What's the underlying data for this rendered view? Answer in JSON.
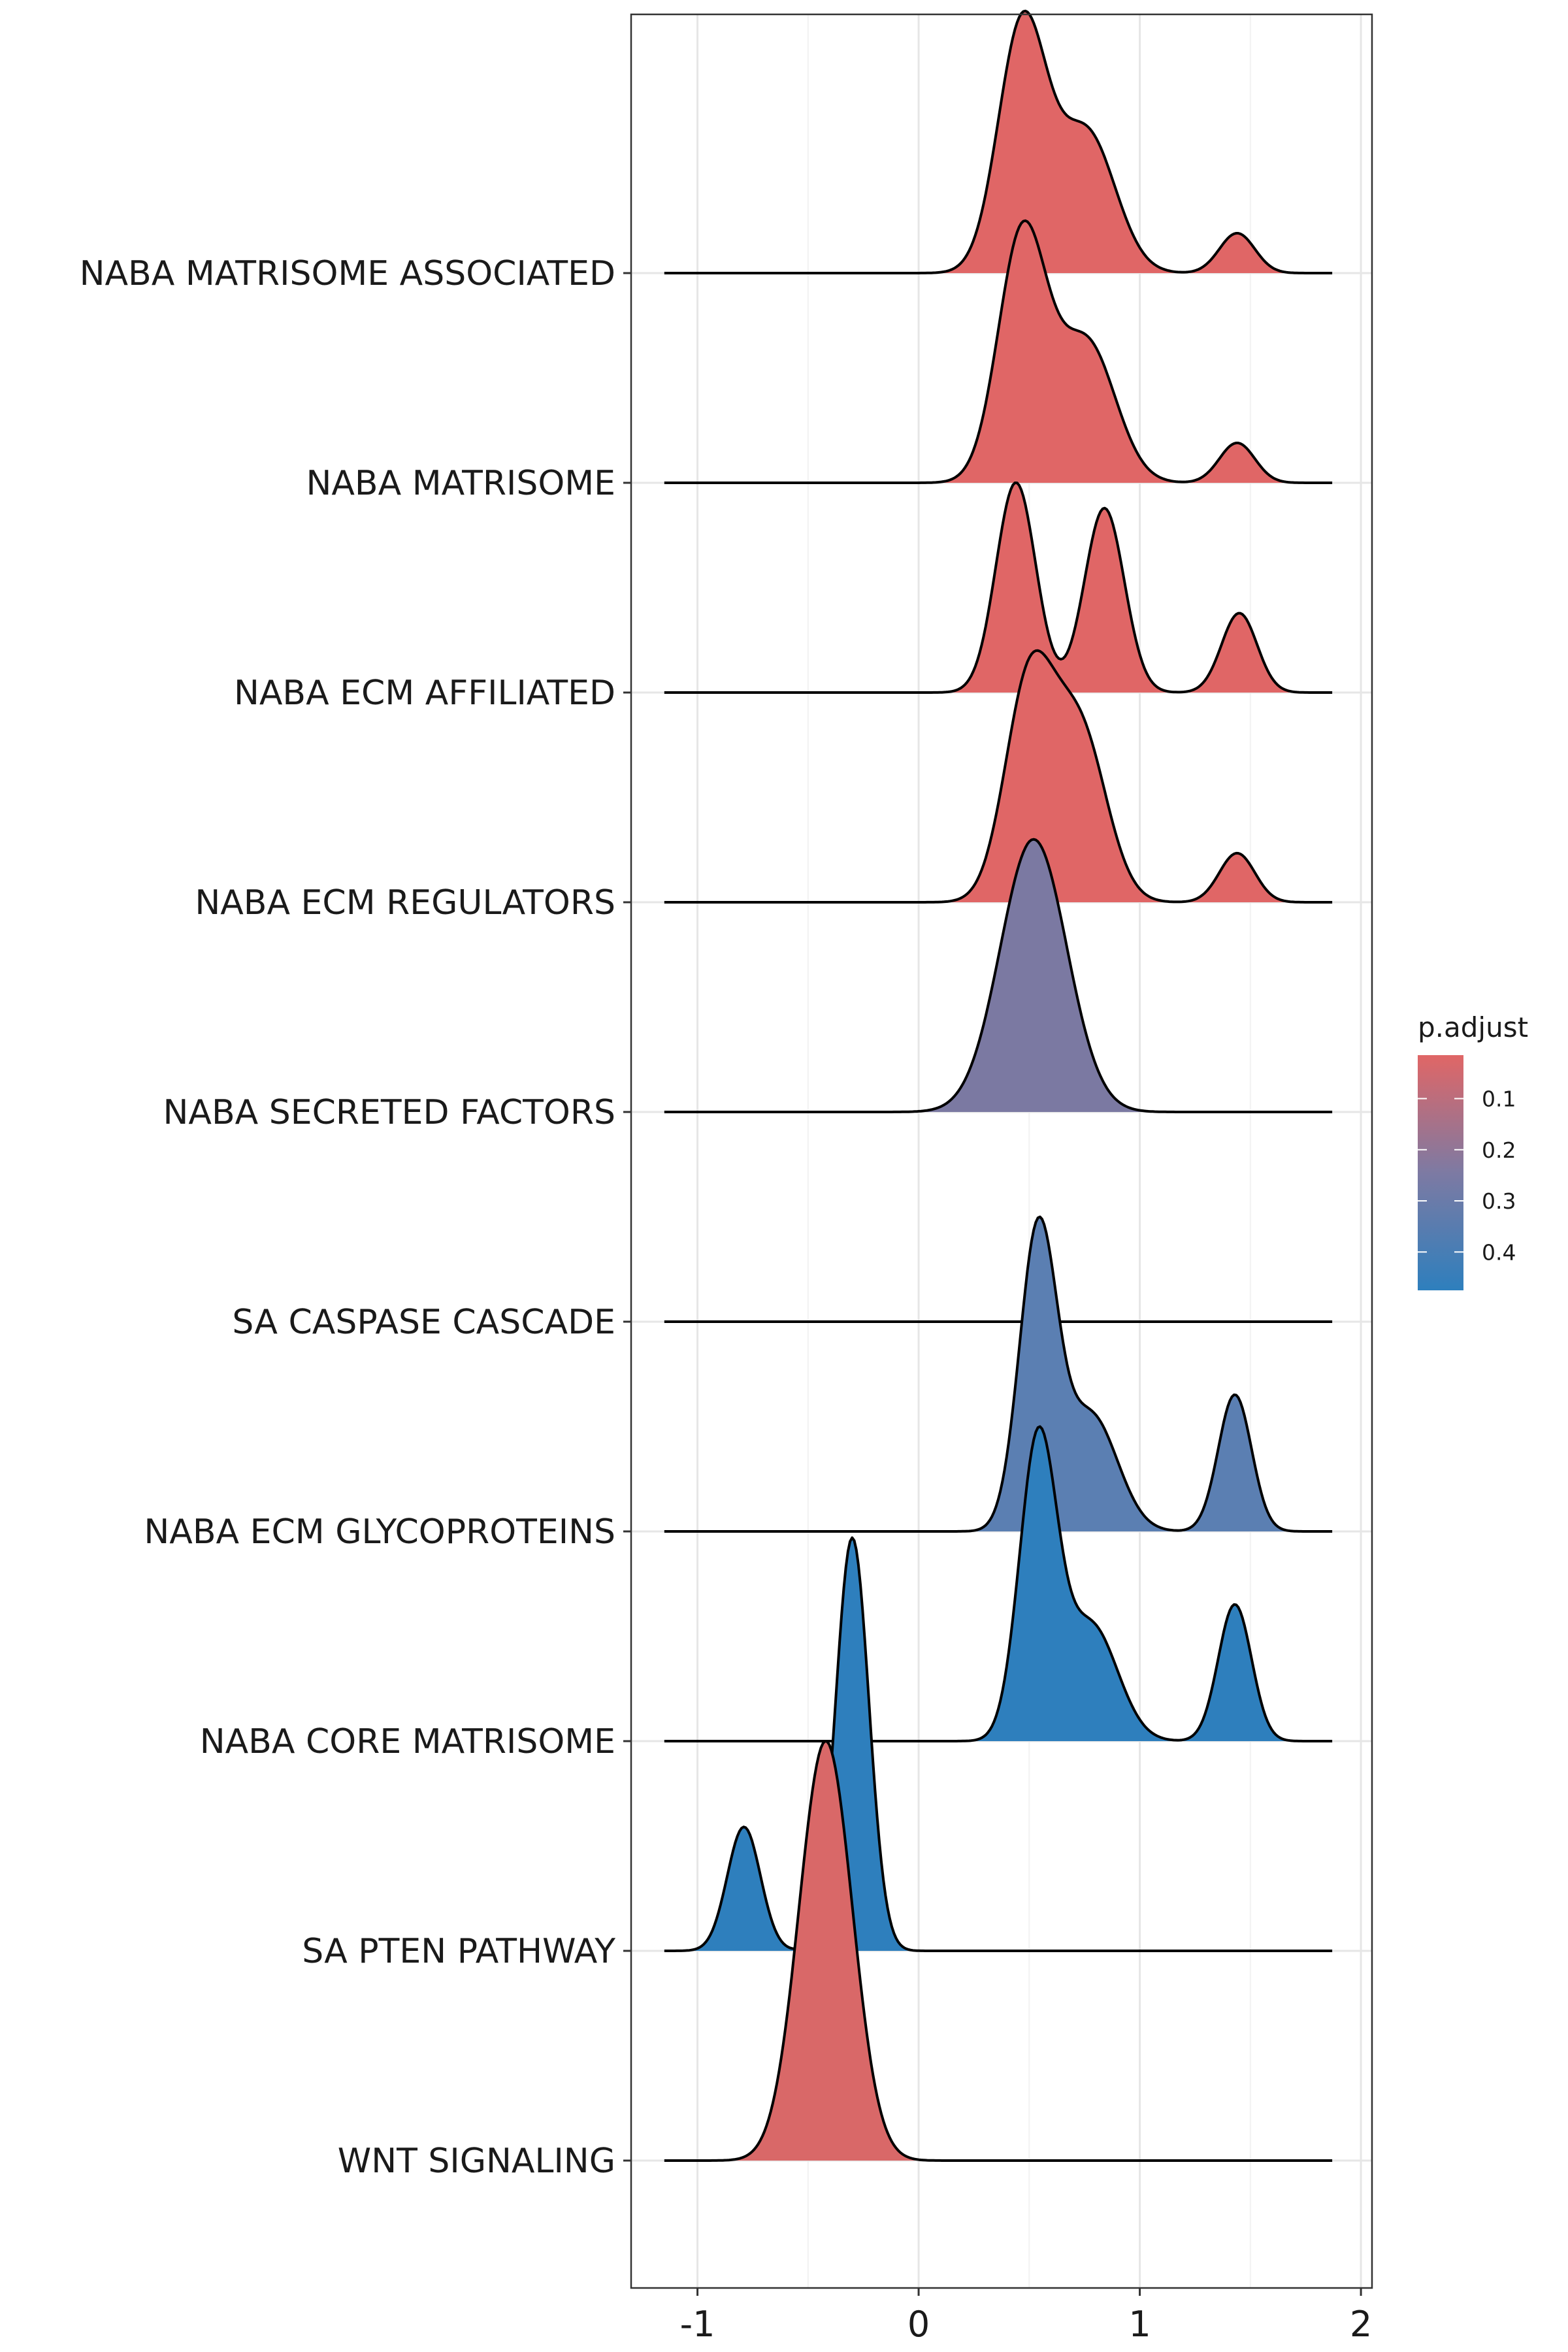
{
  "chart_data": {
    "type": "ridgeline",
    "x_ticks": [
      -1,
      0,
      1,
      2
    ],
    "xlim": [
      -1.3,
      2.05
    ],
    "grid": true,
    "legend": {
      "title": "p.adjust",
      "position": "right",
      "ticks": [
        "0.1",
        "0.2",
        "0.3",
        "0.4"
      ],
      "tick_values": [
        0.1,
        0.2,
        0.3,
        0.4
      ],
      "range": [
        0.015,
        0.475
      ],
      "low_color": "#e06666",
      "high_color": "#2e7fbd"
    },
    "x_range": [
      -1.15,
      1.87
    ],
    "series": [
      {
        "name": "NABA MATRISOME ASSOCIATED",
        "p_adjust": 0.02,
        "color": "#e06666",
        "height": 1.25,
        "peaks": [
          {
            "mu": 0.47,
            "sd": 0.11,
            "w": 0.75
          },
          {
            "mu": 0.76,
            "sd": 0.13,
            "w": 0.42
          },
          {
            "mu": 1.44,
            "sd": 0.08,
            "w": 0.12
          }
        ]
      },
      {
        "name": "NABA MATRISOME",
        "p_adjust": 0.02,
        "color": "#e06666",
        "height": 1.25,
        "peaks": [
          {
            "mu": 0.47,
            "sd": 0.11,
            "w": 0.75
          },
          {
            "mu": 0.76,
            "sd": 0.13,
            "w": 0.42
          },
          {
            "mu": 1.44,
            "sd": 0.08,
            "w": 0.12
          }
        ]
      },
      {
        "name": "NABA ECM AFFILIATED",
        "p_adjust": 0.02,
        "color": "#e06666",
        "height": 1.0,
        "peaks": [
          {
            "mu": 0.44,
            "sd": 0.09,
            "w": 0.74
          },
          {
            "mu": 0.84,
            "sd": 0.09,
            "w": 0.65
          },
          {
            "mu": 1.45,
            "sd": 0.08,
            "w": 0.28
          }
        ]
      },
      {
        "name": "NABA ECM REGULATORS",
        "p_adjust": 0.03,
        "color": "#e06666",
        "height": 1.2,
        "peaks": [
          {
            "mu": 0.5,
            "sd": 0.11,
            "w": 0.62
          },
          {
            "mu": 0.73,
            "sd": 0.12,
            "w": 0.48
          },
          {
            "mu": 1.44,
            "sd": 0.08,
            "w": 0.14
          }
        ]
      },
      {
        "name": "NABA SECRETED FACTORS",
        "p_adjust": 0.31,
        "color": "#7b79a2",
        "height": 1.3,
        "peaks": [
          {
            "mu": 0.52,
            "sd": 0.15,
            "w": 1.0
          }
        ]
      },
      {
        "name": "SA CASPASE CASCADE",
        "p_adjust": 0.39,
        "color": "#5b7fb2",
        "height": 0.0,
        "peaks": []
      },
      {
        "name": "NABA ECM GLYCOPROTEINS",
        "p_adjust": 0.39,
        "color": "#5b7fb2",
        "height": 1.5,
        "peaks": [
          {
            "mu": 0.54,
            "sd": 0.085,
            "w": 0.85
          },
          {
            "mu": 0.78,
            "sd": 0.12,
            "w": 0.33
          },
          {
            "mu": 1.43,
            "sd": 0.075,
            "w": 0.39
          }
        ]
      },
      {
        "name": "NABA CORE MATRISOME",
        "p_adjust": 0.45,
        "color": "#2e7fbd",
        "height": 1.5,
        "peaks": [
          {
            "mu": 0.54,
            "sd": 0.085,
            "w": 0.85
          },
          {
            "mu": 0.78,
            "sd": 0.12,
            "w": 0.33
          },
          {
            "mu": 1.43,
            "sd": 0.075,
            "w": 0.39
          }
        ]
      },
      {
        "name": "SA PTEN PATHWAY",
        "p_adjust": 0.45,
        "color": "#2e7fbd",
        "height": 1.97,
        "peaks": [
          {
            "mu": -0.3,
            "sd": 0.075,
            "w": 1.0
          },
          {
            "mu": -0.79,
            "sd": 0.075,
            "w": 0.3
          }
        ]
      },
      {
        "name": "WNT SIGNALING",
        "p_adjust": 0.03,
        "color": "#d96868",
        "height": 2.0,
        "peaks": [
          {
            "mu": -0.42,
            "sd": 0.12,
            "w": 1.0
          }
        ]
      }
    ]
  }
}
